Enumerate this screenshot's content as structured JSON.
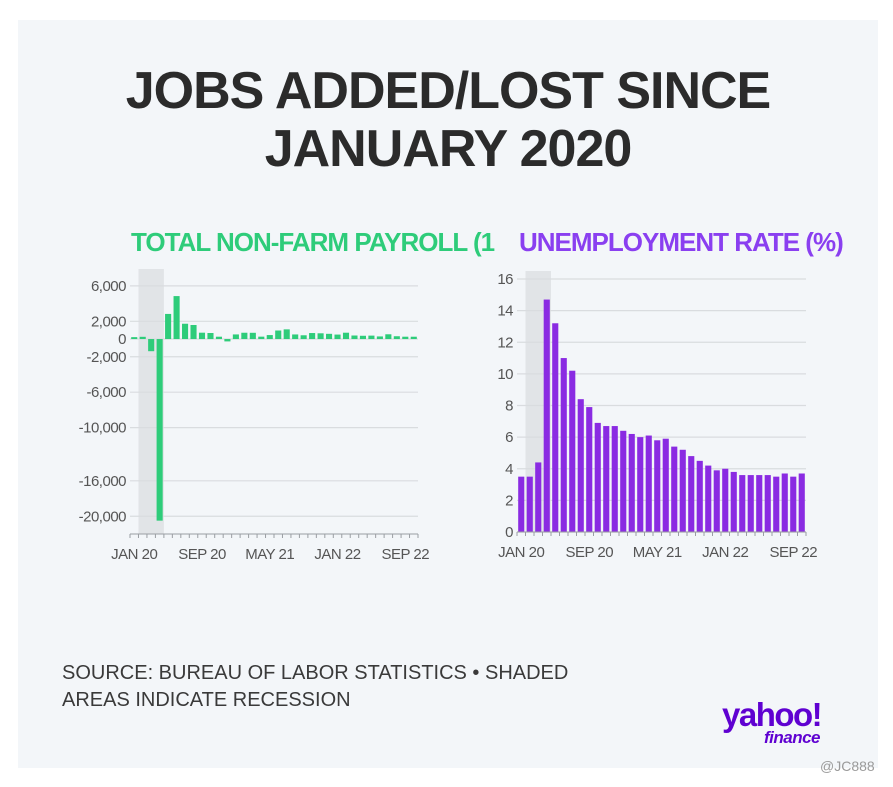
{
  "title_lines": [
    "JOBS ADDED/LOST SINCE",
    "JANUARY 2020"
  ],
  "source_lines": [
    "SOURCE: BUREAU OF LABOR STATISTICS • SHADED",
    "AREAS INDICATE RECESSION"
  ],
  "logo": {
    "brand": "yahoo!",
    "sub": "finance"
  },
  "watermark": "@JC888",
  "chart_data": [
    {
      "type": "bar",
      "title": "TOTAL NON-FARM PAYROLL (1",
      "color": "#2ecc7a",
      "shade_color": "#e1e4e7",
      "recession": [
        "Feb 20",
        "Apr 20"
      ],
      "categories": [
        "Jan 20",
        "Feb 20",
        "Mar 20",
        "Apr 20",
        "May 20",
        "Jun 20",
        "Jul 20",
        "Aug 20",
        "Sep 20",
        "Oct 20",
        "Nov 20",
        "Dec 20",
        "Jan 21",
        "Feb 21",
        "Mar 21",
        "Apr 21",
        "May 21",
        "Jun 21",
        "Jul 21",
        "Aug 21",
        "Sep 21",
        "Oct 21",
        "Nov 21",
        "Dec 21",
        "Jan 22",
        "Feb 22",
        "Mar 22",
        "Apr 22",
        "May 22",
        "Jun 22",
        "Jul 22",
        "Aug 22",
        "Sep 22",
        "Oct 22"
      ],
      "values": [
        214,
        251,
        -1373,
        -20493,
        2833,
        4846,
        1726,
        1583,
        716,
        680,
        263,
        -268,
        520,
        710,
        704,
        269,
        447,
        962,
        1091,
        517,
        424,
        677,
        647,
        588,
        504,
        714,
        398,
        368,
        386,
        293,
        537,
        315,
        263,
        261
      ],
      "ylim": [
        -22000,
        7000
      ],
      "yticks": [
        6000,
        2000,
        0,
        -2000,
        -6000,
        -10000,
        -16000,
        -20000
      ],
      "ytick_labels": [
        "6,000",
        "2,000",
        "0",
        "-2,000",
        "-6,000",
        "-10,000",
        "-16,000",
        "-20,000"
      ],
      "xtick_labels": [
        "JAN 20",
        "SEP 20",
        "MAY 21",
        "JAN 22",
        "SEP 22"
      ],
      "grid": true
    },
    {
      "type": "bar",
      "title": "UNEMPLOYMENT RATE (%)",
      "color": "#8a2be2",
      "shade_color": "#e1e4e7",
      "recession": [
        "Feb 20",
        "Apr 20"
      ],
      "categories": [
        "Jan 20",
        "Feb 20",
        "Mar 20",
        "Apr 20",
        "May 20",
        "Jun 20",
        "Jul 20",
        "Aug 20",
        "Sep 20",
        "Oct 20",
        "Nov 20",
        "Dec 20",
        "Jan 21",
        "Feb 21",
        "Mar 21",
        "Apr 21",
        "May 21",
        "Jun 21",
        "Jul 21",
        "Aug 21",
        "Sep 21",
        "Oct 21",
        "Nov 21",
        "Dec 21",
        "Jan 22",
        "Feb 22",
        "Mar 22",
        "Apr 22",
        "May 22",
        "Jun 22",
        "Jul 22",
        "Aug 22",
        "Sep 22",
        "Oct 22"
      ],
      "values": [
        3.5,
        3.5,
        4.4,
        14.7,
        13.2,
        11.0,
        10.2,
        8.4,
        7.9,
        6.9,
        6.7,
        6.7,
        6.4,
        6.2,
        6.0,
        6.1,
        5.8,
        5.9,
        5.4,
        5.2,
        4.8,
        4.5,
        4.2,
        3.9,
        4.0,
        3.8,
        3.6,
        3.6,
        3.6,
        3.6,
        3.5,
        3.7,
        3.5,
        3.7
      ],
      "ylim": [
        0,
        16
      ],
      "yticks": [
        0,
        2,
        4,
        6,
        8,
        10,
        12,
        14,
        16
      ],
      "ytick_labels": [
        "0",
        "2",
        "4",
        "6",
        "8",
        "10",
        "12",
        "14",
        "16"
      ],
      "xtick_labels": [
        "JAN 20",
        "SEP 20",
        "MAY 21",
        "JAN 22",
        "SEP 22"
      ],
      "grid": true
    }
  ]
}
